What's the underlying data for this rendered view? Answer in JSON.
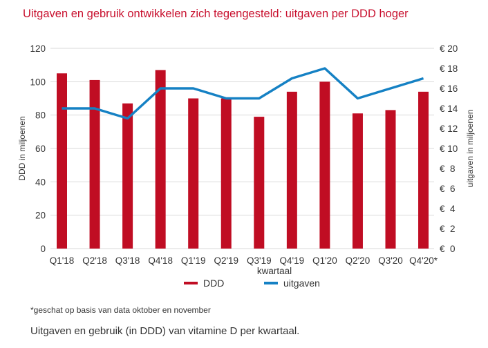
{
  "chart_data": {
    "type": "bar+line",
    "title": "Uitgaven en gebruik ontwikkelen zich tegengesteld: uitgaven per DDD hoger",
    "xlabel": "kwartaal",
    "ylabel_left": "DDD in miljoenen",
    "ylabel_right": "uitgaven in miljoenen",
    "categories": [
      "Q1'18",
      "Q2'18",
      "Q3'18",
      "Q4'18",
      "Q1'19",
      "Q2'19",
      "Q3'19",
      "Q4'19",
      "Q1'20",
      "Q2'20",
      "Q3'20",
      "Q4'20*"
    ],
    "series": [
      {
        "name": "DDD",
        "type": "bar",
        "axis": "left",
        "color": "#c00d23",
        "values": [
          105,
          101,
          87,
          107,
          90,
          90,
          79,
          94,
          100,
          81,
          83,
          94
        ]
      },
      {
        "name": "uitgaven",
        "type": "line",
        "axis": "right",
        "color": "#1581c4",
        "values": [
          14,
          14,
          13,
          16,
          16,
          15,
          15,
          17,
          18,
          15,
          16,
          17
        ]
      }
    ],
    "ylim_left": [
      0,
      120
    ],
    "yticks_left": [
      "0",
      "20",
      "40",
      "60",
      "80",
      "100",
      "120"
    ],
    "ylim_right": [
      0,
      20
    ],
    "yticks_right": [
      "€  0",
      "€  2",
      "€  4",
      "€  6",
      "€  8",
      "€ 10",
      "€ 12",
      "€ 14",
      "€ 16",
      "€ 18",
      "€ 20"
    ],
    "grid": true,
    "legend_position": "bottom"
  },
  "footnote": "*geschat op basis van data oktober en november",
  "caption": "Uitgaven en gebruik (in DDD) van vitamine D per kwartaal."
}
